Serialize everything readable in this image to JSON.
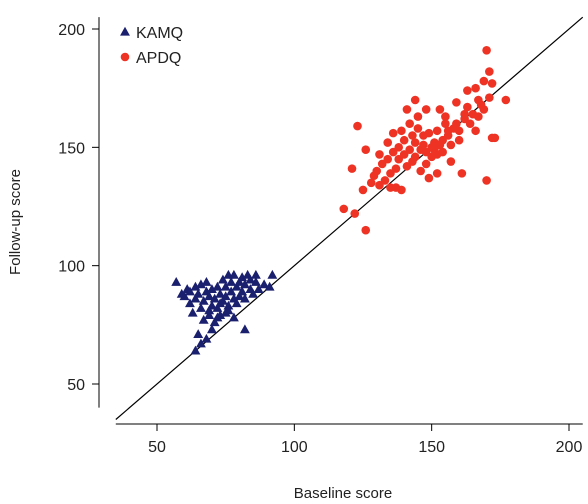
{
  "chart_data": {
    "type": "scatter",
    "title": "",
    "xlabel": "Baseline score",
    "ylabel": "Follow-up score",
    "xlim": [
      35,
      205
    ],
    "ylim": [
      40,
      205
    ],
    "xticks": [
      50,
      100,
      150,
      200
    ],
    "yticks": [
      50,
      100,
      150,
      200
    ],
    "grid": false,
    "legend_position": "top-left",
    "reference_line": {
      "x": [
        35,
        205
      ],
      "y": [
        35,
        205
      ],
      "color": "#000000"
    },
    "series": [
      {
        "name": "KAMQ",
        "marker": "triangle",
        "color": "#1a1f6e",
        "points": [
          [
            57,
            93
          ],
          [
            59,
            88
          ],
          [
            60,
            87
          ],
          [
            61,
            90
          ],
          [
            62,
            89
          ],
          [
            62,
            84
          ],
          [
            63,
            80
          ],
          [
            64,
            91
          ],
          [
            64,
            86
          ],
          [
            65,
            88
          ],
          [
            66,
            92
          ],
          [
            66,
            82
          ],
          [
            67,
            77
          ],
          [
            67,
            85
          ],
          [
            68,
            93
          ],
          [
            68,
            89
          ],
          [
            69,
            87
          ],
          [
            69,
            79
          ],
          [
            70,
            83
          ],
          [
            70,
            90
          ],
          [
            71,
            86
          ],
          [
            71,
            76
          ],
          [
            72,
            91
          ],
          [
            72,
            82
          ],
          [
            73,
            88
          ],
          [
            73,
            79
          ],
          [
            74,
            85
          ],
          [
            74,
            94
          ],
          [
            75,
            91
          ],
          [
            75,
            87
          ],
          [
            76,
            83
          ],
          [
            76,
            96
          ],
          [
            77,
            89
          ],
          [
            77,
            93
          ],
          [
            78,
            86
          ],
          [
            78,
            96
          ],
          [
            79,
            91
          ],
          [
            79,
            84
          ],
          [
            80,
            87
          ],
          [
            80,
            93
          ],
          [
            81,
            95
          ],
          [
            81,
            89
          ],
          [
            82,
            86
          ],
          [
            82,
            92
          ],
          [
            83,
            96
          ],
          [
            84,
            90
          ],
          [
            84,
            94
          ],
          [
            85,
            88
          ],
          [
            86,
            93
          ],
          [
            86,
            96
          ],
          [
            87,
            90
          ],
          [
            89,
            92
          ],
          [
            91,
            91
          ],
          [
            92,
            96
          ],
          [
            64,
            64
          ],
          [
            66,
            67
          ],
          [
            68,
            69
          ],
          [
            70,
            73
          ],
          [
            72,
            78
          ],
          [
            75,
            80
          ],
          [
            78,
            78
          ],
          [
            82,
            73
          ],
          [
            65,
            71
          ],
          [
            69,
            81
          ],
          [
            73,
            84
          ],
          [
            76,
            81
          ]
        ]
      },
      {
        "name": "APDQ",
        "marker": "circle",
        "color": "#ee3324",
        "points": [
          [
            118,
            124
          ],
          [
            121,
            141
          ],
          [
            122,
            122
          ],
          [
            123,
            159
          ],
          [
            125,
            132
          ],
          [
            126,
            115
          ],
          [
            126,
            149
          ],
          [
            128,
            135
          ],
          [
            129,
            138
          ],
          [
            130,
            140
          ],
          [
            131,
            147
          ],
          [
            131,
            134
          ],
          [
            132,
            143
          ],
          [
            133,
            136
          ],
          [
            134,
            145
          ],
          [
            134,
            152
          ],
          [
            135,
            139
          ],
          [
            135,
            133
          ],
          [
            136,
            148
          ],
          [
            136,
            156
          ],
          [
            137,
            141
          ],
          [
            137,
            133
          ],
          [
            138,
            150
          ],
          [
            138,
            145
          ],
          [
            139,
            132
          ],
          [
            139,
            157
          ],
          [
            140,
            147
          ],
          [
            140,
            153
          ],
          [
            141,
            142
          ],
          [
            141,
            166
          ],
          [
            142,
            160
          ],
          [
            142,
            149
          ],
          [
            143,
            155
          ],
          [
            143,
            144
          ],
          [
            144,
            152
          ],
          [
            144,
            146
          ],
          [
            145,
            158
          ],
          [
            145,
            163
          ],
          [
            146,
            149
          ],
          [
            146,
            140
          ],
          [
            147,
            151
          ],
          [
            147,
            155
          ],
          [
            148,
            143
          ],
          [
            148,
            148
          ],
          [
            149,
            156
          ],
          [
            149,
            137
          ],
          [
            150,
            150
          ],
          [
            150,
            146
          ],
          [
            151,
            152
          ],
          [
            151,
            149
          ],
          [
            152,
            147
          ],
          [
            152,
            139
          ],
          [
            153,
            151
          ],
          [
            153,
            166
          ],
          [
            154,
            153
          ],
          [
            154,
            148
          ],
          [
            155,
            160
          ],
          [
            155,
            163
          ],
          [
            156,
            155
          ],
          [
            157,
            144
          ],
          [
            157,
            151
          ],
          [
            158,
            158
          ],
          [
            159,
            160
          ],
          [
            159,
            169
          ],
          [
            160,
            157
          ],
          [
            160,
            153
          ],
          [
            161,
            139
          ],
          [
            162,
            164
          ],
          [
            162,
            162
          ],
          [
            163,
            167
          ],
          [
            164,
            160
          ],
          [
            165,
            164
          ],
          [
            166,
            175
          ],
          [
            166,
            157
          ],
          [
            167,
            170
          ],
          [
            167,
            163
          ],
          [
            168,
            168
          ],
          [
            169,
            178
          ],
          [
            169,
            166
          ],
          [
            170,
            191
          ],
          [
            170,
            136
          ],
          [
            171,
            182
          ],
          [
            171,
            171
          ],
          [
            172,
            154
          ],
          [
            172,
            177
          ],
          [
            173,
            154
          ],
          [
            177,
            170
          ],
          [
            144,
            170
          ],
          [
            148,
            166
          ],
          [
            152,
            157
          ],
          [
            156,
            157
          ],
          [
            163,
            174
          ]
        ]
      }
    ]
  }
}
